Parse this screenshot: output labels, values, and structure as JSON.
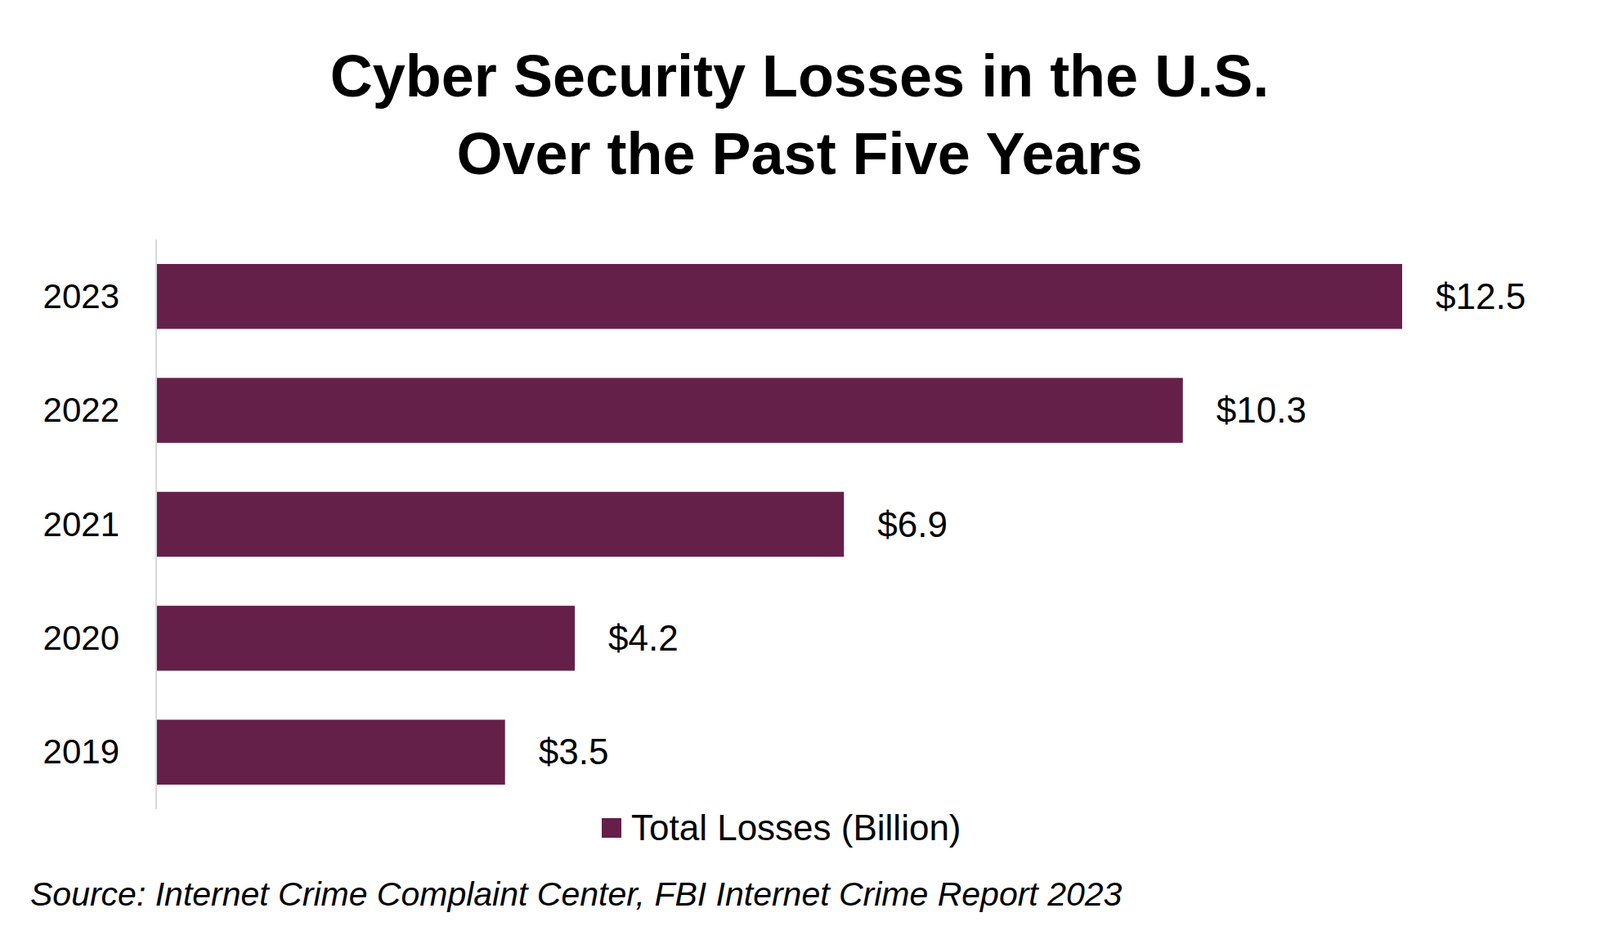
{
  "chart_data": {
    "type": "bar",
    "orientation": "horizontal",
    "title": "Cyber Security Losses in the U.S.\nOver the Past Five Years",
    "categories": [
      "2019",
      "2020",
      "2021",
      "2022",
      "2023"
    ],
    "series": [
      {
        "name": "Total Losses (Billion)",
        "color": "#65204a",
        "values": [
          3.5,
          4.2,
          6.9,
          10.3,
          12.5
        ],
        "value_labels": [
          "$3.5",
          "$4.2",
          "$6.9",
          "$10.3",
          "$12.5"
        ]
      }
    ],
    "xlim": [
      0,
      12.5
    ],
    "grid": false,
    "data_labels": true,
    "legend": "bottom",
    "tick_labels": "y",
    "source": "Source: Internet Crime Complaint Center, FBI Internet Crime Report 2023"
  }
}
